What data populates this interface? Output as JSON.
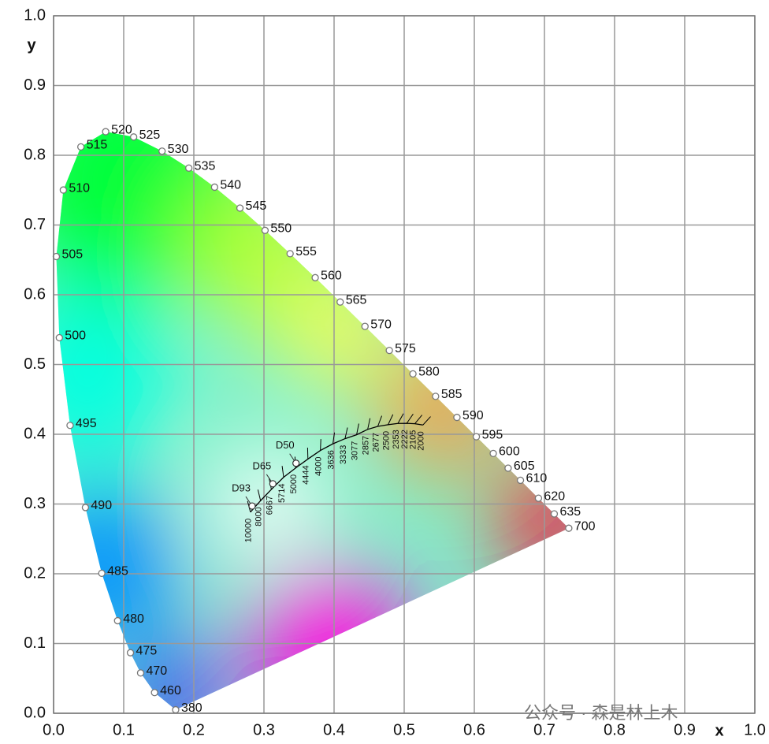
{
  "chart_data": {
    "type": "scatter",
    "x_label": "x",
    "y_label": "y",
    "xlim": [
      0,
      1
    ],
    "ylim": [
      0,
      1
    ],
    "xticks": [
      {
        "value": 0,
        "label": "0.0"
      },
      0.1,
      0.2,
      0.3,
      0.4,
      0.5,
      0.6,
      0.7,
      0.8,
      0.9,
      {
        "value": 1,
        "label": "1.0"
      }
    ],
    "yticks": [
      {
        "value": 0,
        "label": "0.0"
      },
      0.1,
      0.2,
      0.3,
      0.4,
      0.5,
      0.6,
      0.7,
      0.8,
      0.9,
      {
        "value": 1,
        "label": "1.0"
      }
    ],
    "grid": true,
    "series": [
      {
        "color": "#ffffff",
        "labels": [
          "380",
          "460",
          "470",
          "475",
          "480",
          "485",
          "490",
          "495",
          "500",
          "505",
          "510",
          "515",
          "520",
          "525",
          "530",
          "535",
          "540",
          "545",
          "550",
          "555",
          "560",
          "565",
          "570",
          "575",
          "580",
          "585",
          "590",
          "595",
          "600",
          "605",
          "610",
          "620",
          "635",
          "700"
        ],
        "x": [
          0.1741,
          0.144,
          0.1241,
          0.1096,
          0.0913,
          0.0687,
          0.0454,
          0.0235,
          0.0082,
          0.0039,
          0.0139,
          0.0389,
          0.0743,
          0.1142,
          0.1547,
          0.1929,
          0.2296,
          0.2658,
          0.3016,
          0.3373,
          0.3731,
          0.4087,
          0.4441,
          0.4788,
          0.5125,
          0.5448,
          0.5752,
          0.6029,
          0.627,
          0.6482,
          0.6658,
          0.6915,
          0.714,
          0.7347
        ],
        "y": [
          0.005,
          0.0297,
          0.0578,
          0.0868,
          0.1327,
          0.2007,
          0.295,
          0.4127,
          0.5384,
          0.6548,
          0.7502,
          0.812,
          0.8338,
          0.8262,
          0.8059,
          0.7816,
          0.7543,
          0.7243,
          0.6923,
          0.6589,
          0.6245,
          0.5896,
          0.5547,
          0.5202,
          0.4866,
          0.4544,
          0.4242,
          0.3965,
          0.3725,
          0.3514,
          0.334,
          0.3083,
          0.2859,
          0.2653
        ]
      },
      {
        "color": "#ffffff",
        "labels": [
          "D50",
          "D65",
          "D93"
        ],
        "x": [
          0.3457,
          0.3127,
          0.2831
        ],
        "y": [
          0.3585,
          0.329,
          0.2971
        ]
      },
      {
        "color": "#000000",
        "labels": [
          "10000",
          "8000",
          "6667",
          "5714",
          "5000",
          "4444",
          "4000",
          "3636",
          "3333",
          "3077",
          "2857",
          "2677",
          "2500",
          "2353",
          "2222",
          "2105",
          "2000"
        ],
        "x": [
          0.2807,
          0.2952,
          0.3106,
          0.3281,
          0.3451,
          0.3627,
          0.3805,
          0.3983,
          0.4156,
          0.4321,
          0.4479,
          0.4623,
          0.477,
          0.491,
          0.5036,
          0.5151,
          0.5267
        ],
        "y": [
          0.2884,
          0.3048,
          0.321,
          0.3384,
          0.3516,
          0.3645,
          0.3768,
          0.3863,
          0.3937,
          0.3993,
          0.407,
          0.4113,
          0.4137,
          0.4155,
          0.4157,
          0.4151,
          0.4133
        ]
      }
    ],
    "watermark": "公众号 · 森是林上木"
  }
}
